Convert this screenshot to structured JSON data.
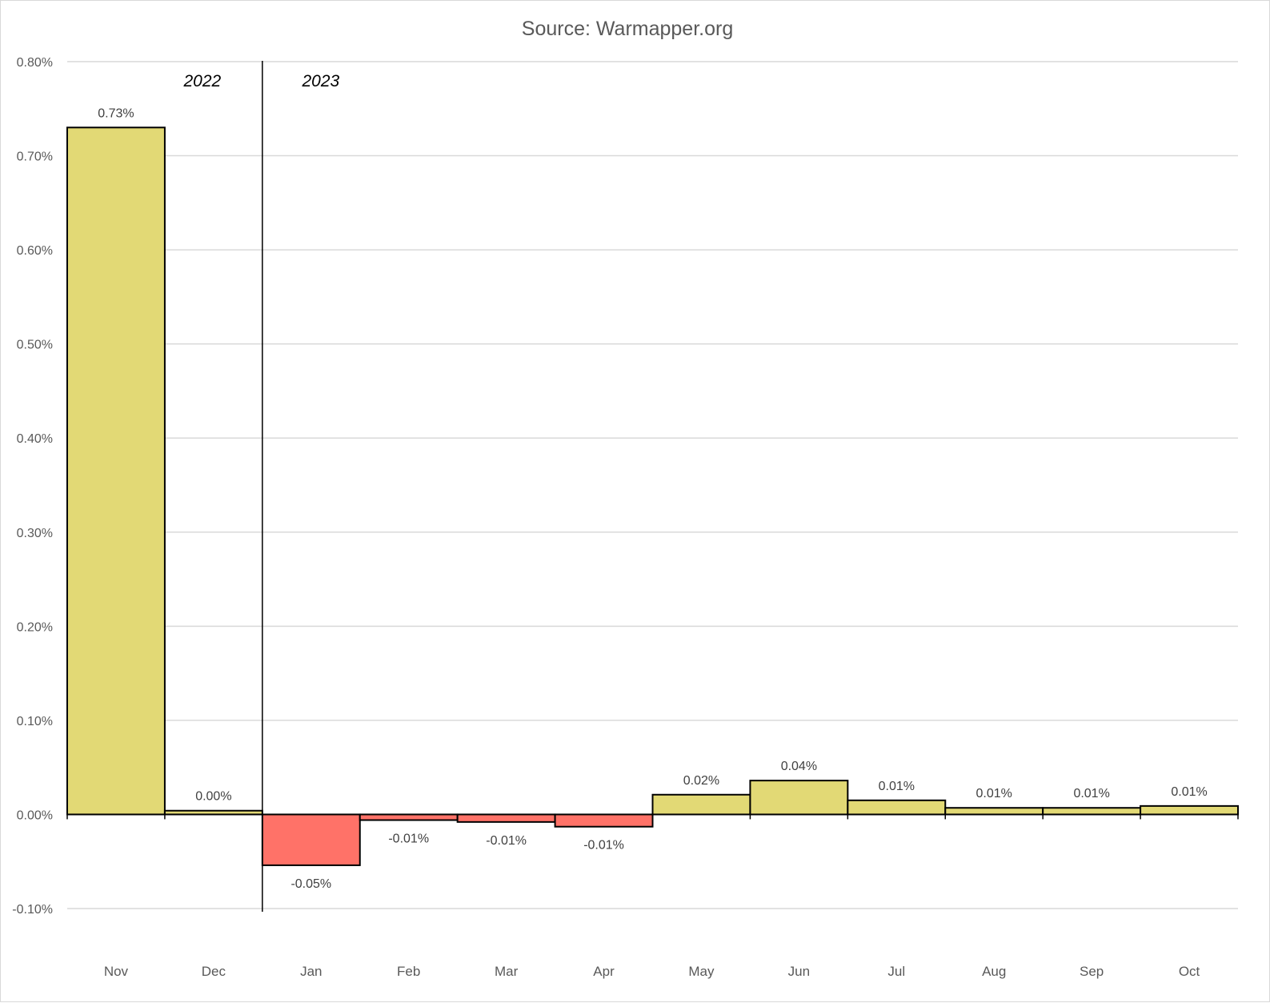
{
  "chart_data": {
    "type": "bar",
    "title": "Source: Warmapper.org",
    "xlabel": "",
    "ylabel": "",
    "categories": [
      "Nov",
      "Dec",
      "Jan",
      "Feb",
      "Mar",
      "Apr",
      "May",
      "Jun",
      "Jul",
      "Aug",
      "Sep",
      "Oct"
    ],
    "values": [
      0.73,
      0.004,
      -0.054,
      -0.006,
      -0.008,
      -0.013,
      0.021,
      0.036,
      0.015,
      0.007,
      0.007,
      0.009
    ],
    "data_labels": [
      "0.73%",
      "0.00%",
      "-0.05%",
      "-0.01%",
      "-0.01%",
      "-0.01%",
      "0.02%",
      "0.04%",
      "0.01%",
      "0.01%",
      "0.01%",
      "0.01%"
    ],
    "unit": "%",
    "ylim": [
      -0.1,
      0.8
    ],
    "yticks": [
      -0.1,
      0.0,
      0.1,
      0.2,
      0.3,
      0.4,
      0.5,
      0.6,
      0.7,
      0.8
    ],
    "ytick_labels": [
      "-0.10%",
      "0.00%",
      "0.10%",
      "0.20%",
      "0.30%",
      "0.40%",
      "0.50%",
      "0.60%",
      "0.70%",
      "0.80%"
    ],
    "grid": true,
    "legend": "none",
    "year_divider_before_category": "Jan",
    "year_labels": [
      "2022",
      "2023"
    ],
    "colors": {
      "positive_bar": "#E2D975",
      "negative_bar": "#FF7268",
      "bar_outline": "#000000",
      "gridline": "#d9d9d9",
      "text": "#595959"
    }
  }
}
